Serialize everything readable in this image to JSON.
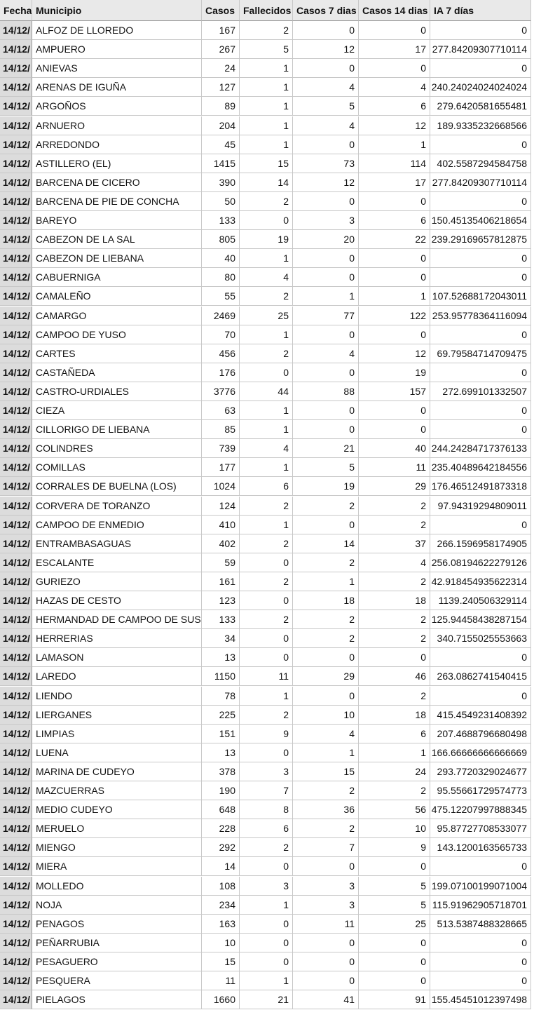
{
  "table": {
    "header": [
      "Fecha",
      "Municipio",
      "Casos",
      "Fallecidos",
      "Casos 7 dias",
      "Casos 14 dias",
      "IA 7 días"
    ],
    "rows": [
      [
        "14/12/",
        "ALFOZ DE LLOREDO",
        "167",
        "2",
        "0",
        "0",
        "0"
      ],
      [
        "14/12/",
        "AMPUERO",
        "267",
        "5",
        "12",
        "17",
        "277.84209307710114"
      ],
      [
        "14/12/",
        "ANIEVAS",
        "24",
        "1",
        "0",
        "0",
        "0"
      ],
      [
        "14/12/",
        "ARENAS DE IGUÑA",
        "127",
        "1",
        "4",
        "4",
        "240.24024024024024"
      ],
      [
        "14/12/",
        "ARGOÑOS",
        "89",
        "1",
        "5",
        "6",
        "279.6420581655481"
      ],
      [
        "14/12/",
        "ARNUERO",
        "204",
        "1",
        "4",
        "12",
        "189.9335232668566"
      ],
      [
        "14/12/",
        "ARREDONDO",
        "45",
        "1",
        "0",
        "1",
        "0"
      ],
      [
        "14/12/",
        "ASTILLERO (EL)",
        "1415",
        "15",
        "73",
        "114",
        "402.5587294584758"
      ],
      [
        "14/12/",
        "BARCENA DE CICERO",
        "390",
        "14",
        "12",
        "17",
        "277.84209307710114"
      ],
      [
        "14/12/",
        "BARCENA DE PIE DE CONCHA",
        "50",
        "2",
        "0",
        "0",
        "0"
      ],
      [
        "14/12/",
        "BAREYO",
        "133",
        "0",
        "3",
        "6",
        "150.45135406218654"
      ],
      [
        "14/12/",
        "CABEZON DE LA SAL",
        "805",
        "19",
        "20",
        "22",
        "239.29169657812875"
      ],
      [
        "14/12/",
        "CABEZON DE LIEBANA",
        "40",
        "1",
        "0",
        "0",
        "0"
      ],
      [
        "14/12/",
        "CABUERNIGA",
        "80",
        "4",
        "0",
        "0",
        "0"
      ],
      [
        "14/12/",
        "CAMALEÑO",
        "55",
        "2",
        "1",
        "1",
        "107.52688172043011"
      ],
      [
        "14/12/",
        "CAMARGO",
        "2469",
        "25",
        "77",
        "122",
        "253.95778364116094"
      ],
      [
        "14/12/",
        "CAMPOO DE YUSO",
        "70",
        "1",
        "0",
        "0",
        "0"
      ],
      [
        "14/12/",
        "CARTES",
        "456",
        "2",
        "4",
        "12",
        "69.79584714709475"
      ],
      [
        "14/12/",
        "CASTAÑEDA",
        "176",
        "0",
        "0",
        "19",
        "0"
      ],
      [
        "14/12/",
        "CASTRO-URDIALES",
        "3776",
        "44",
        "88",
        "157",
        "272.699101332507"
      ],
      [
        "14/12/",
        "CIEZA",
        "63",
        "1",
        "0",
        "0",
        "0"
      ],
      [
        "14/12/",
        "CILLORIGO DE LIEBANA",
        "85",
        "1",
        "0",
        "0",
        "0"
      ],
      [
        "14/12/",
        "COLINDRES",
        "739",
        "4",
        "21",
        "40",
        "244.24284717376133"
      ],
      [
        "14/12/",
        "COMILLAS",
        "177",
        "1",
        "5",
        "11",
        "235.40489642184556"
      ],
      [
        "14/12/",
        "CORRALES DE BUELNA (LOS)",
        "1024",
        "6",
        "19",
        "29",
        "176.46512491873318"
      ],
      [
        "14/12/",
        "CORVERA DE TORANZO",
        "124",
        "2",
        "2",
        "2",
        "97.94319294809011"
      ],
      [
        "14/12/",
        "CAMPOO DE ENMEDIO",
        "410",
        "1",
        "0",
        "2",
        "0"
      ],
      [
        "14/12/",
        "ENTRAMBASAGUAS",
        "402",
        "2",
        "14",
        "37",
        "266.1596958174905"
      ],
      [
        "14/12/",
        "ESCALANTE",
        "59",
        "0",
        "2",
        "4",
        "256.08194622279126"
      ],
      [
        "14/12/",
        "GURIEZO",
        "161",
        "2",
        "1",
        "2",
        "42.918454935622314"
      ],
      [
        "14/12/",
        "HAZAS DE CESTO",
        "123",
        "0",
        "18",
        "18",
        "1139.240506329114"
      ],
      [
        "14/12/",
        "HERMANDAD DE CAMPOO DE SUSO",
        "133",
        "2",
        "2",
        "2",
        "125.94458438287154"
      ],
      [
        "14/12/",
        "HERRERIAS",
        "34",
        "0",
        "2",
        "2",
        "340.7155025553663"
      ],
      [
        "14/12/",
        "LAMASON",
        "13",
        "0",
        "0",
        "0",
        "0"
      ],
      [
        "14/12/",
        "LAREDO",
        "1150",
        "11",
        "29",
        "46",
        "263.0862741540415"
      ],
      [
        "14/12/",
        "LIENDO",
        "78",
        "1",
        "0",
        "2",
        "0"
      ],
      [
        "14/12/",
        "LIERGANES",
        "225",
        "2",
        "10",
        "18",
        "415.4549231408392"
      ],
      [
        "14/12/",
        "LIMPIAS",
        "151",
        "9",
        "4",
        "6",
        "207.4688796680498"
      ],
      [
        "14/12/",
        "LUENA",
        "13",
        "0",
        "1",
        "1",
        "166.66666666666669"
      ],
      [
        "14/12/",
        "MARINA DE CUDEYO",
        "378",
        "3",
        "15",
        "24",
        "293.7720329024677"
      ],
      [
        "14/12/",
        "MAZCUERRAS",
        "190",
        "7",
        "2",
        "2",
        "95.55661729574773"
      ],
      [
        "14/12/",
        "MEDIO CUDEYO",
        "648",
        "8",
        "36",
        "56",
        "475.12207997888345"
      ],
      [
        "14/12/",
        "MERUELO",
        "228",
        "6",
        "2",
        "10",
        "95.87727708533077"
      ],
      [
        "14/12/",
        "MIENGO",
        "292",
        "2",
        "7",
        "9",
        "143.1200163565733"
      ],
      [
        "14/12/",
        "MIERA",
        "14",
        "0",
        "0",
        "0",
        "0"
      ],
      [
        "14/12/",
        "MOLLEDO",
        "108",
        "3",
        "3",
        "5",
        "199.07100199071004"
      ],
      [
        "14/12/",
        "NOJA",
        "234",
        "1",
        "3",
        "5",
        "115.91962905718701"
      ],
      [
        "14/12/",
        "PENAGOS",
        "163",
        "0",
        "11",
        "25",
        "513.5387488328665"
      ],
      [
        "14/12/",
        "PEÑARRUBIA",
        "10",
        "0",
        "0",
        "0",
        "0"
      ],
      [
        "14/12/",
        "PESAGUERO",
        "15",
        "0",
        "0",
        "0",
        "0"
      ],
      [
        "14/12/",
        "PESQUERA",
        "11",
        "1",
        "0",
        "0",
        "0"
      ],
      [
        "14/12/",
        "PIELAGOS",
        "1660",
        "21",
        "41",
        "91",
        "155.45451012397498"
      ]
    ]
  }
}
